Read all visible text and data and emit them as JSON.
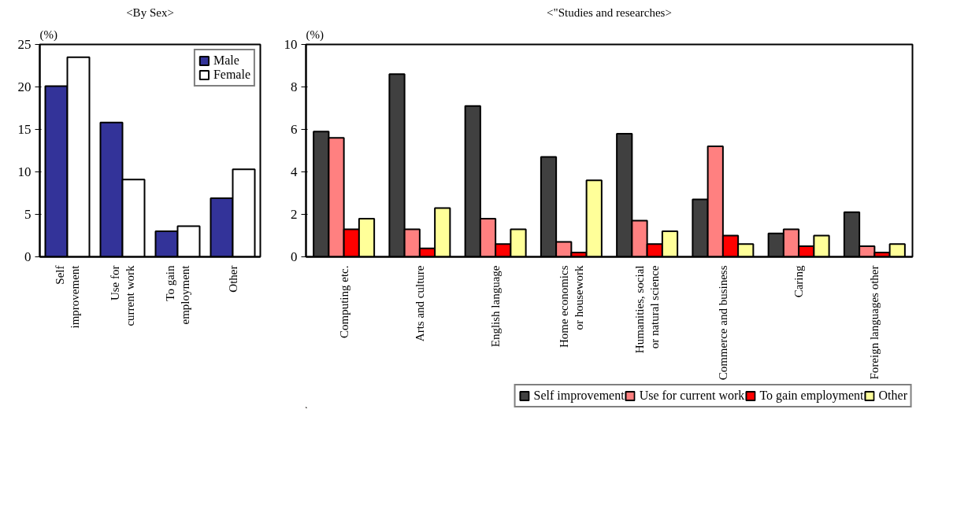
{
  "chart_data": [
    {
      "type": "bar",
      "title": "<By Sex>",
      "ylabel": "(%)",
      "categories": [
        "Self\nimprovement",
        "Use for\ncurrent work",
        "To gain\nemployment",
        "Other"
      ],
      "series": [
        {
          "name": "Male",
          "color": "#333399",
          "values": [
            20.1,
            15.8,
            3.0,
            6.9
          ]
        },
        {
          "name": "Female",
          "color": "#ffffff",
          "values": [
            23.5,
            9.1,
            3.6,
            10.3
          ]
        }
      ],
      "ylim": [
        0,
        25
      ],
      "yticks": [
        0,
        5,
        10,
        15,
        20,
        25
      ],
      "grid": false,
      "legend": "top right"
    },
    {
      "type": "bar",
      "title": "<\"Studies and researches>",
      "ylabel": "(%)",
      "categories": [
        "Computing etc.",
        "Arts and culture",
        "English language",
        "Home economics\nor housework",
        "Humanities, social\nor natural science",
        "Commerce and business",
        "Caring",
        "Foreign languages other"
      ],
      "series": [
        {
          "name": "Self improvement",
          "color": "#404040",
          "values": [
            5.9,
            8.6,
            7.1,
            4.7,
            5.8,
            2.7,
            1.1,
            2.1
          ]
        },
        {
          "name": "Use for current work",
          "color": "#ff8080",
          "values": [
            5.6,
            1.3,
            1.8,
            0.7,
            1.7,
            5.2,
            1.3,
            0.5
          ]
        },
        {
          "name": "To gain employment",
          "color": "#ff0000",
          "values": [
            1.3,
            0.4,
            0.6,
            0.2,
            0.6,
            1.0,
            0.5,
            0.2
          ]
        },
        {
          "name": "Other",
          "color": "#ffff99",
          "values": [
            1.8,
            2.3,
            1.3,
            3.6,
            1.2,
            0.6,
            1.0,
            0.6
          ]
        }
      ],
      "ylim": [
        0,
        10
      ],
      "yticks": [
        0,
        2,
        4,
        6,
        8,
        10
      ],
      "grid": false,
      "legend": "bottom"
    }
  ]
}
